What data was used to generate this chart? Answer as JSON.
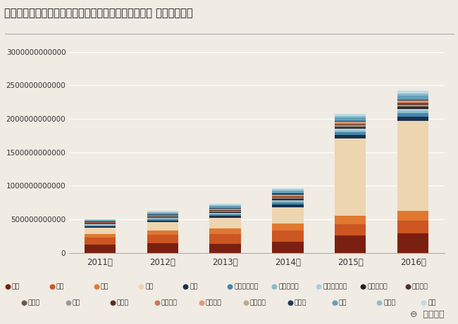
{
  "title": "インバウンド消費データ（訪日外国人消費動向）国別 年推移グラフ",
  "years": [
    "2011年",
    "2012年",
    "2013年",
    "2014年",
    "2015年",
    "2016年"
  ],
  "countries": [
    "韓国",
    "台湾",
    "香港",
    "中国",
    "タイ",
    "シンガポール",
    "マレーシア",
    "インドネシア",
    "フィリピン",
    "ベトナム",
    "インド",
    "英国",
    "ドイツ",
    "フランス",
    "イタリア",
    "スペイン",
    "ロシア",
    "米国",
    "カナダ",
    "豪州"
  ],
  "colors": [
    "#7B2010",
    "#CC5522",
    "#E07830",
    "#EDD5B0",
    "#1A3050",
    "#4488AA",
    "#88BBCC",
    "#AACCDD",
    "#222222",
    "#4A3028",
    "#6B5848",
    "#999999",
    "#5A3020",
    "#CC7755",
    "#E09A78",
    "#C0AA88",
    "#1C3A58",
    "#60A0BB",
    "#90BBCC",
    "#BCDAE5"
  ],
  "data": {
    "韓国": [
      120000000000,
      140000000000,
      135000000000,
      165000000000,
      255000000000,
      285000000000
    ],
    "台湾": [
      105000000000,
      125000000000,
      145000000000,
      165000000000,
      175000000000,
      195000000000
    ],
    "香港": [
      55000000000,
      68000000000,
      82000000000,
      102000000000,
      122000000000,
      142000000000
    ],
    "中国": [
      95000000000,
      125000000000,
      155000000000,
      245000000000,
      1150000000000,
      1350000000000
    ],
    "タイ": [
      18000000000,
      23000000000,
      30000000000,
      42000000000,
      55000000000,
      65000000000
    ],
    "シンガポール": [
      14000000000,
      18000000000,
      22000000000,
      30000000000,
      40000000000,
      48000000000
    ],
    "マレーシア": [
      10000000000,
      13000000000,
      16000000000,
      22000000000,
      30000000000,
      36000000000
    ],
    "インドネシア": [
      7000000000,
      9000000000,
      12000000000,
      17000000000,
      23000000000,
      29000000000
    ],
    "フィリピン": [
      4000000000,
      5000000000,
      7000000000,
      10000000000,
      14000000000,
      17000000000
    ],
    "ベトナム": [
      3000000000,
      4000000000,
      5000000000,
      7000000000,
      9000000000,
      12000000000
    ],
    "インド": [
      4000000000,
      5000000000,
      6000000000,
      8000000000,
      11000000000,
      14000000000
    ],
    "英国": [
      6000000000,
      7500000000,
      9500000000,
      13000000000,
      17000000000,
      20000000000
    ],
    "ドイツ": [
      5000000000,
      6500000000,
      8500000000,
      12000000000,
      15000000000,
      18000000000
    ],
    "フランス": [
      6500000000,
      8000000000,
      10500000000,
      15000000000,
      19000000000,
      23000000000
    ],
    "イタリア": [
      3500000000,
      4500000000,
      6000000000,
      8500000000,
      12000000000,
      14500000000
    ],
    "スペイン": [
      2500000000,
      3200000000,
      4200000000,
      6000000000,
      8000000000,
      9500000000
    ],
    "ロシア": [
      9000000000,
      11000000000,
      14000000000,
      16000000000,
      11000000000,
      8500000000
    ],
    "米国": [
      17000000000,
      21000000000,
      27000000000,
      38000000000,
      52000000000,
      62000000000
    ],
    "カナダ": [
      7500000000,
      9500000000,
      12000000000,
      16000000000,
      21000000000,
      25000000000
    ],
    "豪州": [
      11000000000,
      14000000000,
      19000000000,
      26000000000,
      36000000000,
      43000000000
    ]
  },
  "ylim": [
    0,
    3000000000000
  ],
  "yticks": [
    0,
    500000000000,
    1000000000000,
    1500000000000,
    2000000000000,
    2500000000000,
    3000000000000
  ],
  "background_color": "#F0EBE3",
  "plot_bg_color": "#F0EBE3",
  "watermark_text": "訪日ラボ"
}
